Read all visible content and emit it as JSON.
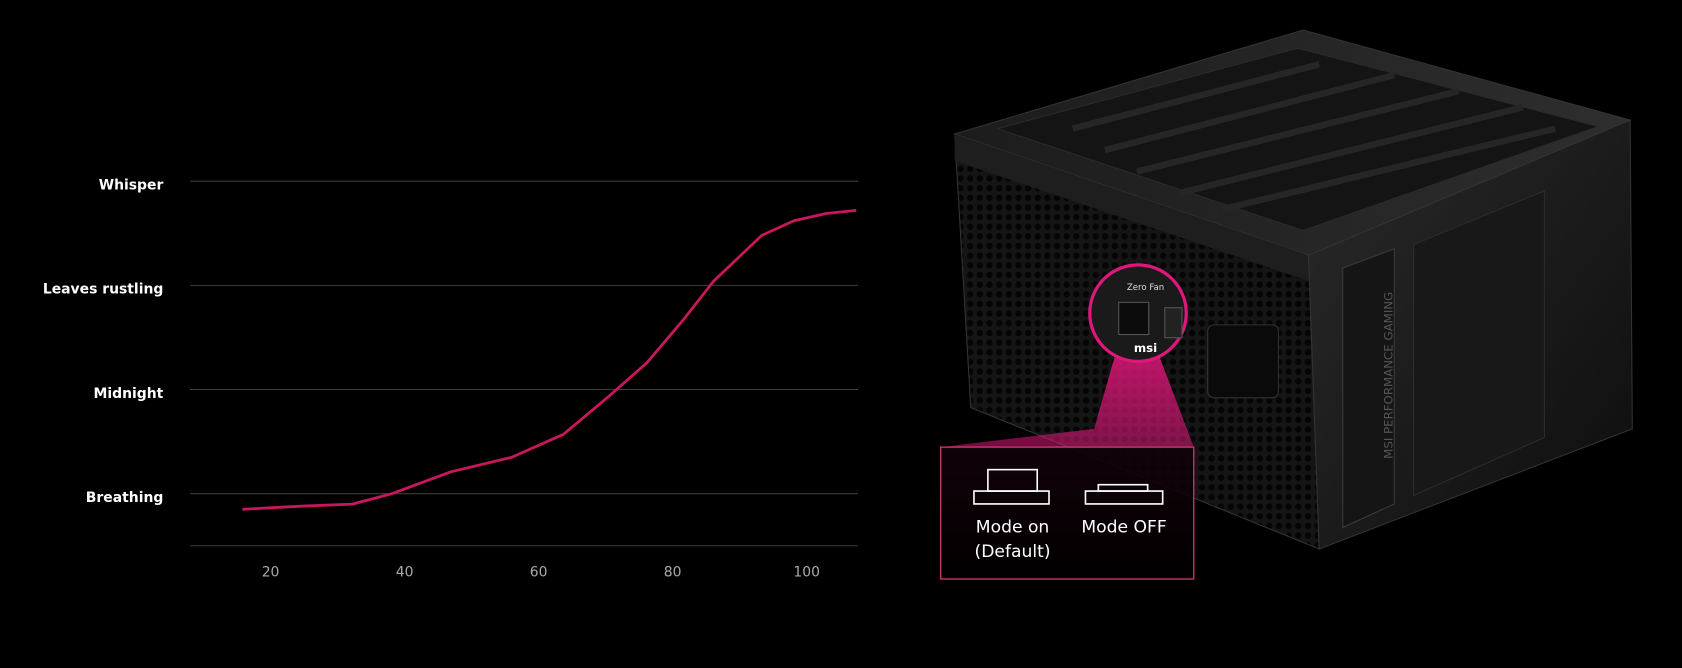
{
  "chart_data": {
    "type": "line",
    "x": [
      15.8,
      24.5,
      32.2,
      38.1,
      46.9,
      56,
      63.7,
      70.4,
      76.2,
      81.6,
      86.1,
      93.3,
      98.1,
      102.9,
      107.4
    ],
    "series": [
      {
        "color": "#c8175d",
        "values": [
          0.85,
          0.88,
          0.9,
          1.0,
          1.21,
          1.35,
          1.57,
          1.93,
          2.26,
          2.67,
          3.04,
          3.48,
          3.62,
          3.69,
          3.72
        ]
      }
    ],
    "xlim": [
      8,
      108
    ],
    "xticks": [
      20,
      40,
      60,
      80,
      100
    ],
    "ylim": [
      0.5,
      4
    ],
    "yticks": [
      {
        "value": 1,
        "label": "Breathing"
      },
      {
        "value": 2,
        "label": "Midnight"
      },
      {
        "value": 3,
        "label": "Leaves rustling"
      },
      {
        "value": 4,
        "label": "Whisper"
      }
    ],
    "grid": true
  },
  "product": {
    "switch_label": "Zero Fan",
    "side_text": "MSI PERFORMANCE GAMING",
    "brand": "msi"
  },
  "callout": {
    "mode_on": [
      "Mode on",
      "(Default)"
    ],
    "mode_off": "Mode OFF"
  }
}
